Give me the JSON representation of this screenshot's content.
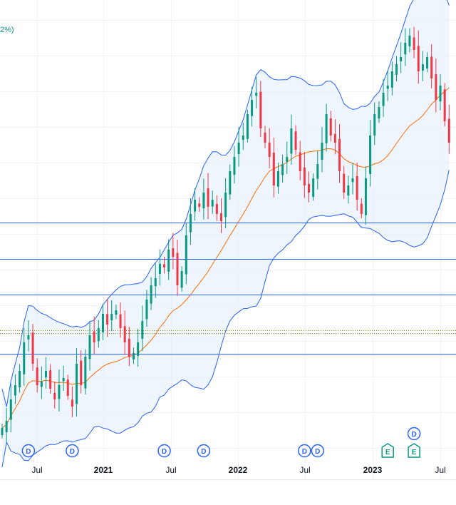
{
  "chart_data": {
    "type": "candlestick",
    "legend_fragment": "2%)",
    "x_ticks": [
      {
        "label": "Jul",
        "bold": false
      },
      {
        "label": "2021",
        "bold": true
      },
      {
        "label": "Jul",
        "bold": false
      },
      {
        "label": "2022",
        "bold": true
      },
      {
        "label": "Jul",
        "bold": false
      },
      {
        "label": "2023",
        "bold": true
      },
      {
        "label": "Jul",
        "bold": false
      }
    ],
    "horizontal_levels": [
      312,
      363,
      413,
      496
    ],
    "dotted_levels": [
      463,
      467
    ],
    "events": [
      {
        "kind": "dividend",
        "label": "D",
        "bar": 6
      },
      {
        "kind": "dividend",
        "label": "D",
        "bar": 16
      },
      {
        "kind": "dividend",
        "label": "D",
        "bar": 37
      },
      {
        "kind": "dividend",
        "label": "D",
        "bar": 46
      },
      {
        "kind": "dividend",
        "label": "D",
        "bar": 69
      },
      {
        "kind": "dividend",
        "label": "D",
        "bar": 72
      },
      {
        "kind": "earnings",
        "label": "E",
        "bar": 88
      },
      {
        "kind": "earnings",
        "label": "E",
        "bar": 94
      },
      {
        "kind": "dividend",
        "label": "D",
        "bar": 94,
        "stacked": true
      }
    ],
    "close": [
      600,
      590,
      560,
      540,
      520,
      480,
      470,
      510,
      540,
      535,
      520,
      545,
      560,
      540,
      530,
      555,
      570,
      510,
      540,
      500,
      470,
      480,
      460,
      440,
      455,
      440,
      435,
      460,
      480,
      500,
      495,
      480,
      450,
      420,
      400,
      390,
      370,
      375,
      350,
      360,
      400,
      380,
      330,
      300,
      280,
      290,
      270,
      290,
      280,
      300,
      310,
      270,
      240,
      220,
      200,
      190,
      160,
      140,
      130,
      180,
      200,
      220,
      260,
      240,
      230,
      220,
      180,
      210,
      240,
      260,
      270,
      250,
      230,
      200,
      160,
      190,
      200,
      240,
      270,
      260,
      250,
      280,
      300,
      250,
      190,
      160,
      150,
      130,
      120,
      100,
      90,
      80,
      60,
      50,
      70,
      100,
      90,
      80,
      110,
      140,
      120,
      170,
      200
    ],
    "colors": {
      "up": "#089981",
      "down": "#f23645",
      "band": "#2962ff",
      "band_fill": "#e3effb",
      "basis": "#ff6d00",
      "level": "#2962ff",
      "dotted": "#8c8c0a"
    }
  }
}
